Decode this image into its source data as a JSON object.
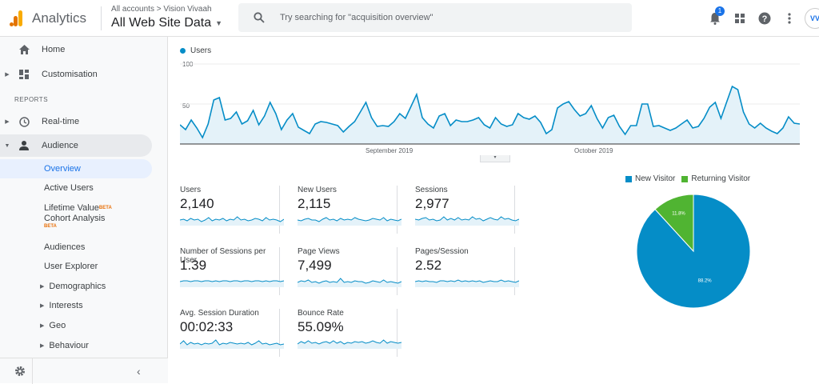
{
  "header": {
    "app_title": "Analytics",
    "breadcrumb": "All accounts > Vision Vivaah",
    "view_name": "All Web Site Data",
    "search_placeholder": "Try searching for \"acquisition overview\"",
    "notification_count": "1",
    "avatar_text": "VV",
    "icons": [
      "analytics-logo-icon",
      "search-icon",
      "bell-icon",
      "apps-grid-icon",
      "help-icon",
      "more-vert-icon"
    ]
  },
  "sidebar": {
    "top_items": [
      {
        "label": "Home",
        "icon": "home-icon"
      },
      {
        "label": "Customisation",
        "icon": "dashboard-icon"
      }
    ],
    "section_label": "REPORTS",
    "realtime_label": "Real-time",
    "audience_label": "Audience",
    "audience_sub": [
      {
        "label": "Overview",
        "active": true
      },
      {
        "label": "Active Users"
      },
      {
        "label": "Lifetime Value",
        "badge": "BETA"
      },
      {
        "label": "Cohort Analysis",
        "badge": "BETA"
      },
      {
        "label": "Audiences"
      },
      {
        "label": "User Explorer"
      },
      {
        "label": "Demographics",
        "expandable": true
      },
      {
        "label": "Interests",
        "expandable": true
      },
      {
        "label": "Geo",
        "expandable": true
      },
      {
        "label": "Behaviour",
        "expandable": true
      }
    ],
    "footer_icons": [
      "settings-icon",
      "collapse-sidebar-icon"
    ]
  },
  "colors": {
    "accent": "#1a73e8",
    "line": "#058dc7",
    "fill": "#e4f2f9",
    "returning": "#50b432"
  },
  "chart_data": [
    {
      "type": "area",
      "legend": "Users",
      "ylabels": [
        "100",
        "50"
      ],
      "ylim": [
        0,
        100
      ],
      "xlabels": [
        "September 2019",
        "October 2019"
      ],
      "values": [
        24,
        18,
        30,
        20,
        8,
        25,
        55,
        58,
        30,
        32,
        40,
        25,
        29,
        42,
        24,
        35,
        52,
        38,
        18,
        30,
        38,
        21,
        17,
        13,
        25,
        28,
        27,
        25,
        23,
        15,
        22,
        28,
        40,
        52,
        33,
        22,
        23,
        22,
        28,
        38,
        32,
        47,
        62,
        33,
        25,
        20,
        35,
        38,
        23,
        30,
        28,
        28,
        30,
        33,
        24,
        20,
        33,
        25,
        22,
        24,
        38,
        33,
        31,
        35,
        27,
        13,
        18,
        45,
        50,
        53,
        43,
        35,
        38,
        48,
        32,
        20,
        33,
        36,
        22,
        12,
        23,
        23,
        50,
        50,
        22,
        23,
        20,
        17,
        20,
        25,
        30,
        20,
        22,
        32,
        46,
        52,
        32,
        52,
        72,
        68,
        40,
        25,
        20,
        26,
        20,
        16,
        13,
        20,
        34,
        26,
        25
      ]
    },
    {
      "type": "pie",
      "legend": [
        "New Visitor",
        "Returning Visitor"
      ],
      "values": [
        88.2,
        11.8
      ],
      "labels": [
        "88.2%",
        "11.8%"
      ]
    }
  ],
  "metrics": [
    {
      "label": "Users",
      "value": "2,140"
    },
    {
      "label": "New Users",
      "value": "2,115"
    },
    {
      "label": "Sessions",
      "value": "2,977"
    },
    {
      "label": "Number of Sessions per User",
      "value": "1.39"
    },
    {
      "label": "Page Views",
      "value": "7,499"
    },
    {
      "label": "Pages/Session",
      "value": "2.52"
    },
    {
      "label": "Avg. Session Duration",
      "value": "00:02:33"
    },
    {
      "label": "Bounce Rate",
      "value": "55.09%"
    }
  ]
}
